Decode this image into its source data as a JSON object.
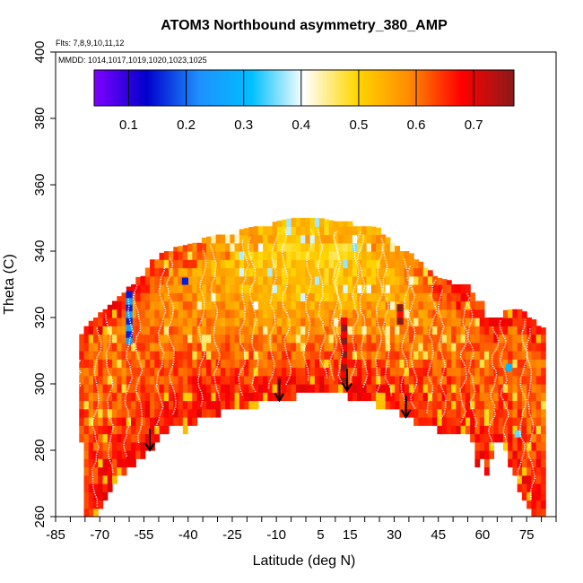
{
  "chart_data": {
    "type": "heatmap",
    "title": "ATOM3 Northbound asymmetry_380_AMP",
    "flights_note": "Flts: 7,8,9,10,11,12",
    "dates_note": "MMDD: 1014,1017,1019,1020,1023,1025",
    "xlabel": "Latitude (deg N)",
    "ylabel": "Theta (C)",
    "xlim": [
      -85,
      85
    ],
    "ylim": [
      260,
      400
    ],
    "x_ticks": [
      -85,
      -70,
      -55,
      -40,
      -25,
      -10,
      5,
      15,
      30,
      45,
      60,
      75
    ],
    "x_minor_ticks": [
      -80,
      -75,
      -65,
      -60,
      -50,
      -45,
      -35,
      -30,
      -20,
      -15,
      -5,
      0,
      10,
      20,
      25,
      35,
      40,
      50,
      55,
      65,
      70,
      80,
      85
    ],
    "y_ticks": [
      260,
      280,
      300,
      320,
      340,
      360,
      380,
      400
    ],
    "colorbar": {
      "range": [
        0.04,
        0.77
      ],
      "ticks": [
        0.1,
        0.2,
        0.3,
        0.4,
        0.5,
        0.6,
        0.7
      ],
      "colors": [
        "#7f00ff",
        "#0000cc",
        "#1e90ff",
        "#00bfff",
        "#ffffff",
        "#ffd700",
        "#ff8c00",
        "#ff0000",
        "#8b1a1a"
      ]
    },
    "coverage_envelope": {
      "latitude": [
        -77,
        -75,
        -72,
        -65,
        -55,
        -52,
        -46,
        -40,
        -35,
        -25,
        -15,
        -5,
        5,
        10,
        15,
        20,
        25,
        30,
        35,
        40,
        45,
        50,
        55,
        57,
        59,
        60,
        61,
        65,
        70,
        74,
        78,
        80
      ],
      "theta_bottom": [
        296,
        262,
        260,
        272,
        280,
        282,
        288,
        287,
        291,
        293,
        295,
        297,
        299,
        298,
        297,
        296,
        294,
        293,
        290,
        289,
        287,
        286,
        285,
        284,
        272,
        280,
        272,
        285,
        276,
        266,
        261,
        262
      ],
      "theta_top": [
        313,
        316,
        319,
        324,
        333,
        337,
        340,
        341,
        343,
        345,
        347,
        349,
        349,
        348,
        348,
        347,
        346,
        341,
        339,
        335,
        331,
        330,
        329,
        326,
        324,
        324,
        320,
        319,
        323,
        321,
        318,
        316
      ]
    },
    "field_samples": [
      {
        "lat": -60,
        "theta_min": 312,
        "theta_max": 328,
        "value": 0.2
      },
      {
        "lat": -41,
        "theta_min": 330,
        "theta_max": 332,
        "value": 0.1
      },
      {
        "lat": 13,
        "theta_min": 300,
        "theta_max": 320,
        "value": 0.73
      },
      {
        "lat": 32,
        "theta_min": 318,
        "theta_max": 324,
        "value": 0.72
      },
      {
        "lat": 69,
        "theta_min": 304,
        "theta_max": 306,
        "value": 0.25
      },
      {
        "lat": 72,
        "theta_min": 284,
        "theta_max": 286,
        "value": 0.3
      }
    ],
    "arrows": [
      {
        "lat": -53,
        "theta": 280
      },
      {
        "lat": -9,
        "theta": 295
      },
      {
        "lat": 14,
        "theta": 298
      },
      {
        "lat": 34,
        "theta": 290
      }
    ]
  }
}
